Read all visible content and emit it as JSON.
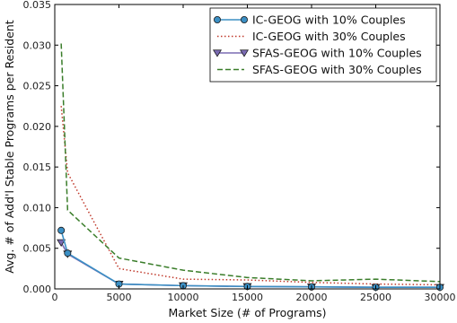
{
  "chart_data": {
    "type": "line",
    "title": "",
    "xlabel": "Market Size (# of Programs)",
    "ylabel": "Avg. # of Add'l Stable Programs per Resident",
    "xlim": [
      0,
      30000
    ],
    "ylim": [
      0,
      0.035
    ],
    "x_ticks": [
      0,
      5000,
      10000,
      15000,
      20000,
      25000,
      30000
    ],
    "x_tick_labels": [
      "0",
      "5000",
      "10000",
      "15000",
      "20000",
      "25000",
      "30000"
    ],
    "y_ticks": [
      0,
      0.005,
      0.01,
      0.015,
      0.02,
      0.025,
      0.03,
      0.035
    ],
    "y_tick_labels": [
      "0.000",
      "0.005",
      "0.010",
      "0.015",
      "0.020",
      "0.025",
      "0.030",
      "0.035"
    ],
    "grid": false,
    "legend_position": "top-right",
    "series": [
      {
        "name": "IC-GEOG with 10% Couples",
        "style": "solid",
        "marker": "circle",
        "color": "#3b8fc4",
        "x": [
          500,
          1000,
          5000,
          10000,
          15000,
          20000,
          25000,
          30000
        ],
        "y": [
          0.0072,
          0.0044,
          0.0006,
          0.0004,
          0.0003,
          0.00025,
          0.0002,
          0.0002
        ]
      },
      {
        "name": "IC-GEOG with 30% Couples",
        "style": "dotted",
        "marker": "none",
        "color": "#c0392b",
        "x": [
          500,
          1000,
          5000,
          10000,
          15000,
          20000,
          25000,
          30000
        ],
        "y": [
          0.0225,
          0.0143,
          0.0025,
          0.0012,
          0.0011,
          0.0008,
          0.0006,
          0.0005
        ]
      },
      {
        "name": "SFAS-GEOG with 10% Couples",
        "style": "solid",
        "marker": "triangle-down",
        "color": "#7b6bb3",
        "x": [
          500,
          1000,
          5000,
          10000,
          15000,
          20000,
          25000,
          30000
        ],
        "y": [
          0.0057,
          0.0043,
          0.0006,
          0.0004,
          0.0003,
          0.00025,
          0.0002,
          0.0002
        ]
      },
      {
        "name": "SFAS-GEOG with 30% Couples",
        "style": "dashed",
        "marker": "none",
        "color": "#3a7d2a",
        "x": [
          500,
          1000,
          5000,
          10000,
          15000,
          20000,
          25000,
          30000
        ],
        "y": [
          0.0302,
          0.0097,
          0.0038,
          0.0023,
          0.0014,
          0.001,
          0.0012,
          0.0009
        ]
      }
    ]
  }
}
